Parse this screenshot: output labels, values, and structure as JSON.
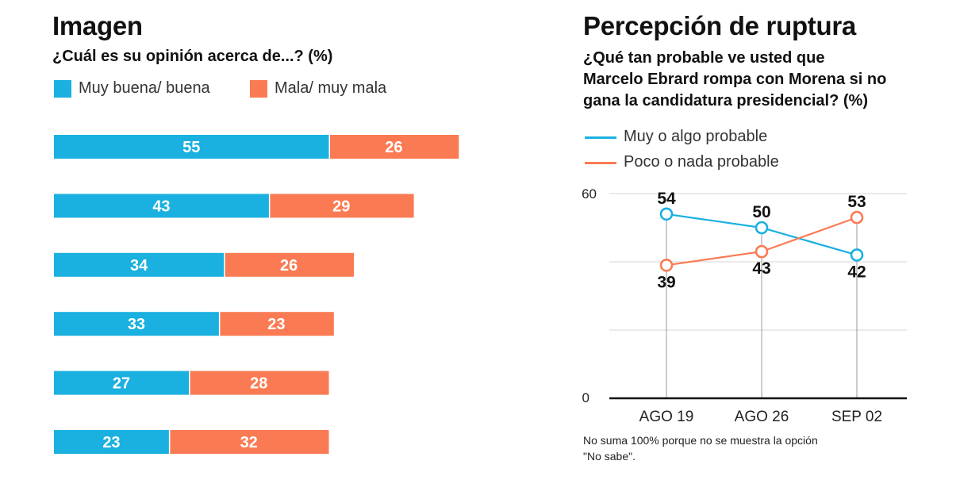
{
  "left": {
    "title": "Imagen",
    "subtitle": "¿Cuál es su opinión acerca de...? (%)",
    "legend": [
      "Muy buena/ buena",
      "Mala/ muy mala"
    ]
  },
  "right": {
    "title": "Percepción de ruptura",
    "subtitle_lines": [
      "¿Qué tan probable ve usted que",
      "Marcelo Ebrard rompa con Morena si no",
      "gana la candidatura presidencial? (%)"
    ],
    "legend": [
      "Muy o algo probable",
      "Poco o nada probable"
    ],
    "note_lines": [
      "No suma 100% porque no se muestra la opción",
      "\"No sabe\"."
    ]
  },
  "colors": {
    "blue": "#1ab0df",
    "orange": "#fa7b53",
    "grid": "#d5d5d5",
    "axis": "#111111"
  },
  "chart_data": [
    {
      "type": "bar",
      "title": "Imagen",
      "subtitle": "¿Cuál es su opinión acerca de...? (%)",
      "stacked": true,
      "orientation": "horizontal",
      "categories": [
        "",
        "",
        "",
        "",
        "",
        ""
      ],
      "series": [
        {
          "name": "Muy buena/ buena",
          "color": "#1ab0df",
          "values": [
            55,
            43,
            34,
            33,
            27,
            23
          ]
        },
        {
          "name": "Mala/ muy mala",
          "color": "#fa7b53",
          "values": [
            26,
            29,
            26,
            23,
            28,
            32
          ]
        }
      ],
      "xlim": [
        0,
        100
      ],
      "grid": false,
      "legend": "top-left"
    },
    {
      "type": "line",
      "title": "Percepción de ruptura",
      "subtitle": "¿Qué tan probable ve usted que Marcelo Ebrard rompa con Morena si no gana la candidatura presidencial? (%)",
      "x": [
        "AGO 19",
        "AGO 26",
        "SEP 02"
      ],
      "series": [
        {
          "name": "Muy o algo probable",
          "color": "#1ab0df",
          "values": [
            54,
            50,
            42
          ]
        },
        {
          "name": "Poco o nada probable",
          "color": "#fa7b53",
          "values": [
            39,
            43,
            53
          ]
        }
      ],
      "ylim": [
        0,
        60
      ],
      "yticks": [
        "0",
        "60"
      ],
      "grid": true,
      "legend": "top-left"
    }
  ]
}
